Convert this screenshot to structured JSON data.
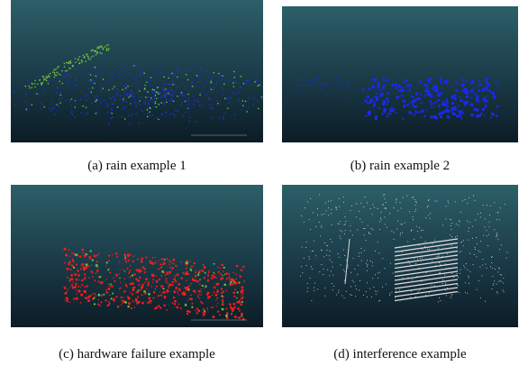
{
  "figure": {
    "subfigures": [
      {
        "label": "(a)",
        "caption": "rain example 1"
      },
      {
        "label": "(b)",
        "caption": "rain example 2"
      },
      {
        "label": "(c)",
        "caption": "hardware failure example"
      },
      {
        "label": "(d)",
        "caption": "interference example"
      }
    ]
  }
}
